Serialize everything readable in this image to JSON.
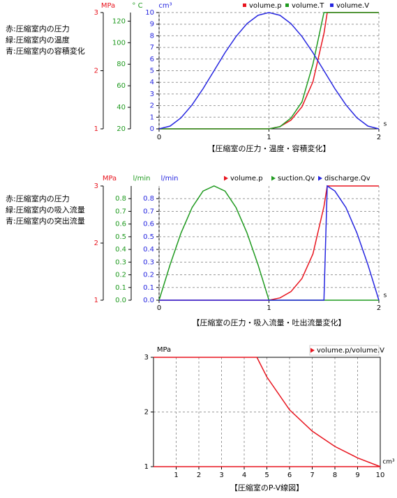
{
  "chart_data": [
    {
      "type": "line",
      "notes": [
        "赤:圧縮室内の圧力",
        "緑:圧縮室内の温度",
        "青:圧縮室内の容積変化"
      ],
      "caption": "【圧縮室の圧力・温度・容積変化】",
      "legend_marker": "square",
      "xlabel": "s",
      "xlim": [
        0,
        2
      ],
      "xticks": [
        0,
        1,
        2
      ],
      "x": [
        0,
        0.1,
        0.2,
        0.3,
        0.4,
        0.5,
        0.6,
        0.7,
        0.8,
        0.9,
        1,
        1.1,
        1.2,
        1.3,
        1.4,
        1.5,
        1.53,
        1.6,
        1.7,
        1.8,
        1.9,
        2
      ],
      "yaxes": [
        {
          "label": "MPa",
          "color": "#e8141e",
          "lim": [
            1,
            3
          ],
          "ticks": [
            1,
            2,
            3
          ],
          "grid": false
        },
        {
          "label": "° C",
          "color": "#1f9a1f",
          "lim": [
            20,
            128
          ],
          "ticks": [
            20,
            40,
            60,
            80,
            100,
            120
          ],
          "grid": false
        },
        {
          "label": "cm³",
          "color": "#2525e0",
          "lim": [
            0,
            10
          ],
          "ticks": [
            0,
            1,
            2,
            3,
            4,
            5,
            6,
            7,
            8,
            9,
            10
          ],
          "grid": true
        }
      ],
      "series": [
        {
          "name": "volume.p",
          "color": "#e8141e",
          "axis": 0,
          "values": [
            1,
            1,
            1,
            1,
            1,
            1,
            1,
            1,
            1,
            1,
            1,
            1.04,
            1.15,
            1.38,
            1.81,
            2.64,
            3,
            3,
            3,
            3,
            3,
            3
          ]
        },
        {
          "name": "volume.T",
          "color": "#1f9a1f",
          "axis": 1,
          "values": [
            20,
            20,
            20,
            20,
            20,
            20,
            20,
            20,
            20,
            20,
            20,
            22,
            30,
            45,
            80,
            128,
            128,
            128,
            128,
            128,
            128,
            128
          ]
        },
        {
          "name": "volume.V",
          "color": "#2525e0",
          "axis": 2,
          "values": [
            0,
            0.24,
            0.95,
            2.06,
            3.45,
            5,
            6.55,
            7.94,
            9.05,
            9.76,
            10,
            9.76,
            9.05,
            7.94,
            6.55,
            5,
            4.53,
            3.45,
            2.06,
            0.95,
            0.24,
            0
          ]
        }
      ]
    },
    {
      "type": "line",
      "notes": [
        "赤:圧縮室内の圧力",
        "緑:圧縮室内の吸入流量",
        "青:圧縮室内の突出流量"
      ],
      "caption": "【圧縮室の圧力・吸入流量・吐出流量変化】",
      "legend_marker": "triangle",
      "xlabel": "s",
      "xlim": [
        0,
        2
      ],
      "xticks": [
        0,
        1,
        2
      ],
      "x": [
        0,
        0.1,
        0.2,
        0.3,
        0.4,
        0.5,
        0.6,
        0.7,
        0.8,
        0.9,
        1,
        1.1,
        1.2,
        1.3,
        1.4,
        1.5,
        1.53,
        1.6,
        1.7,
        1.8,
        1.9,
        2
      ],
      "yaxes": [
        {
          "label": "MPa",
          "color": "#e8141e",
          "lim": [
            1,
            3
          ],
          "ticks": [
            1,
            2,
            3
          ],
          "grid": false
        },
        {
          "label": "l/min",
          "color": "#1f9a1f",
          "lim": [
            0,
            0.9
          ],
          "ticks": [
            {
              "value": 0,
              "label": "0.0"
            },
            0.1,
            0.2,
            0.3,
            0.4,
            0.5,
            0.6,
            0.7,
            0.8
          ],
          "grid": false
        },
        {
          "label": "l/min",
          "color": "#2525e0",
          "lim": [
            0,
            0.9
          ],
          "ticks": [
            {
              "value": 0,
              "label": "0.0"
            },
            0.1,
            0.2,
            0.3,
            0.4,
            0.5,
            0.6,
            0.7,
            0.8
          ],
          "grid": true
        }
      ],
      "series": [
        {
          "name": "volume.p",
          "color": "#e8141e",
          "axis": 0,
          "values": [
            1,
            1,
            1,
            1,
            1,
            1,
            1,
            1,
            1,
            1,
            1,
            1.04,
            1.15,
            1.38,
            1.81,
            2.64,
            3,
            3,
            3,
            3,
            3,
            3
          ]
        },
        {
          "name": "suction.Qv",
          "color": "#1f9a1f",
          "axis": 1,
          "values": [
            0,
            0.28,
            0.53,
            0.73,
            0.86,
            0.9,
            0.86,
            0.73,
            0.53,
            0.28,
            0,
            0,
            0,
            0,
            0,
            0,
            0,
            0,
            0,
            0,
            0,
            0
          ]
        },
        {
          "name": "discharge.Qv",
          "color": "#2525e0",
          "axis": 2,
          "values": [
            0,
            0,
            0,
            0,
            0,
            0,
            0,
            0,
            0,
            0,
            0,
            0,
            0,
            0,
            0,
            0,
            0.9,
            0.86,
            0.73,
            0.53,
            0.28,
            0
          ]
        }
      ]
    },
    {
      "type": "line",
      "caption": "【圧縮室のP-V線図】",
      "legend_marker": "triangle",
      "legend_box": true,
      "xlabel": "cm³",
      "xlim": [
        0,
        10
      ],
      "xticks": [
        1,
        2,
        3,
        4,
        5,
        6,
        7,
        8,
        9,
        10
      ],
      "yaxes": [
        {
          "label": "MPa",
          "color": "#000000",
          "lim": [
            1,
            3
          ],
          "ticks": [
            1,
            2,
            3
          ],
          "grid": true
        }
      ],
      "series": [
        {
          "name": "volume.p/volume.V",
          "color": "#e8141e",
          "axis": 0,
          "x": [
            0,
            10,
            9,
            8,
            7,
            6,
            5,
            4.56,
            0
          ],
          "values": [
            1,
            1,
            1.16,
            1.37,
            1.65,
            2.04,
            2.64,
            3,
            3
          ]
        }
      ]
    }
  ]
}
